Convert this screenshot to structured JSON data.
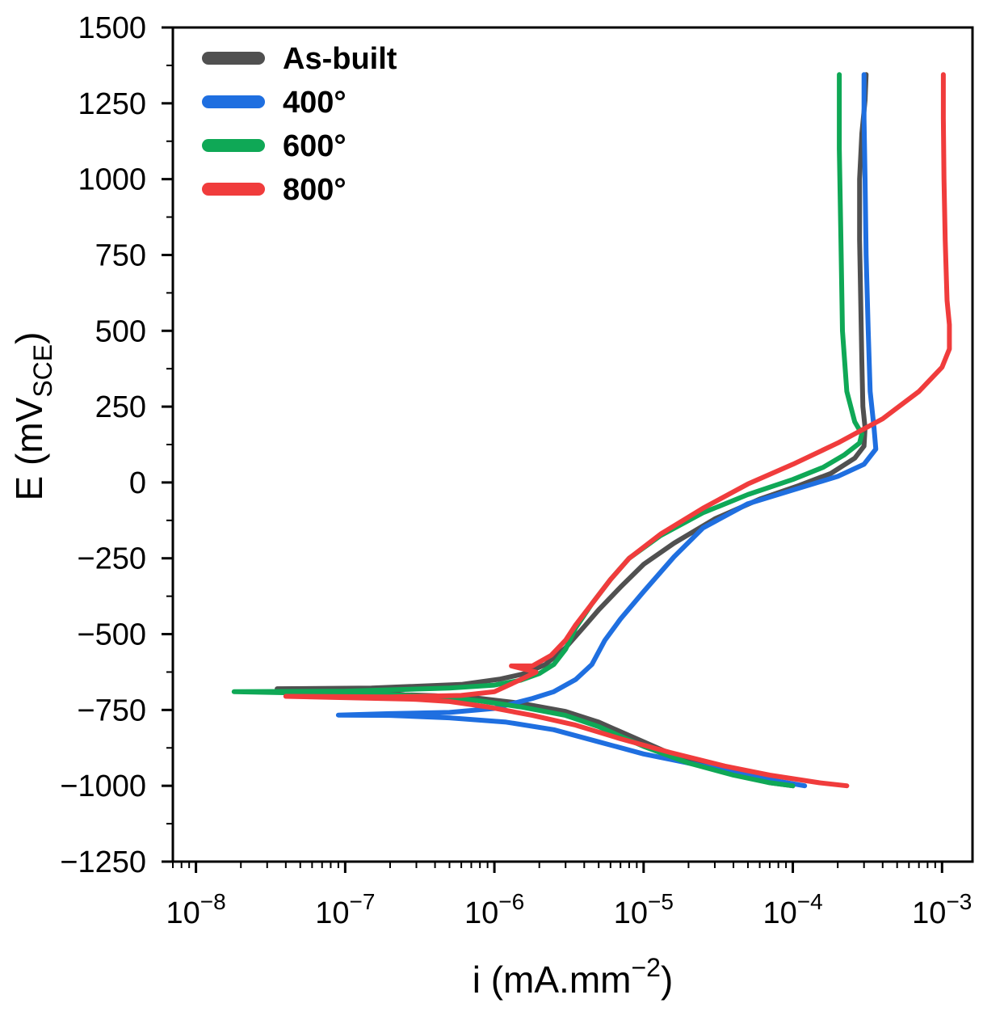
{
  "chart_data": {
    "type": "line",
    "xlabel": {
      "base": "i (mA.mm",
      "sup": "−2",
      "tail": ")"
    },
    "ylabel": {
      "base": "E (mV",
      "sub": "SCE",
      "tail": ")"
    },
    "xscale": "log",
    "xlim": [
      7e-09,
      0.0016
    ],
    "ylim": [
      -1250,
      1500
    ],
    "yticks": [
      {
        "v": 1500,
        "label": "1500"
      },
      {
        "v": 1250,
        "label": "1250"
      },
      {
        "v": 1000,
        "label": "1000"
      },
      {
        "v": 750,
        "label": "750"
      },
      {
        "v": 500,
        "label": "500"
      },
      {
        "v": 250,
        "label": "250"
      },
      {
        "v": 0,
        "label": "0"
      },
      {
        "v": -250,
        "label": "−250"
      },
      {
        "v": -500,
        "label": "−500"
      },
      {
        "v": -750,
        "label": "−750"
      },
      {
        "v": -1000,
        "label": "−1000"
      },
      {
        "v": -1250,
        "label": "−1250"
      }
    ],
    "xticks": [
      {
        "v": 1e-08,
        "base": "10",
        "exp": "−8"
      },
      {
        "v": 1e-07,
        "base": "10",
        "exp": "−7"
      },
      {
        "v": 1e-06,
        "base": "10",
        "exp": "−6"
      },
      {
        "v": 1e-05,
        "base": "10",
        "exp": "−5"
      },
      {
        "v": 0.0001,
        "base": "10",
        "exp": "−4"
      },
      {
        "v": 0.001,
        "base": "10",
        "exp": "−3"
      }
    ],
    "legend_position": "top-left",
    "grid": false,
    "series": [
      {
        "name": "As-built",
        "color": "#505050",
        "points": [
          [
            0.0001,
            -1000
          ],
          [
            7e-05,
            -990
          ],
          [
            4e-05,
            -960
          ],
          [
            2e-05,
            -920
          ],
          [
            1e-05,
            -855
          ],
          [
            5e-06,
            -790
          ],
          [
            3e-06,
            -755
          ],
          [
            1.5e-06,
            -728
          ],
          [
            8e-07,
            -712
          ],
          [
            4e-07,
            -703
          ],
          [
            2.5e-07,
            -700
          ],
          [
            2e-07,
            -695
          ],
          [
            3.5e-08,
            -680
          ],
          [
            1.5e-07,
            -678
          ],
          [
            6e-07,
            -666
          ],
          [
            1.1e-06,
            -648
          ],
          [
            1.6e-06,
            -630
          ],
          [
            2.2e-06,
            -600
          ],
          [
            3e-06,
            -545
          ],
          [
            4e-06,
            -475
          ],
          [
            5e-06,
            -420
          ],
          [
            7e-06,
            -345
          ],
          [
            1e-05,
            -270
          ],
          [
            1.6e-05,
            -200
          ],
          [
            3e-05,
            -120
          ],
          [
            6e-05,
            -55
          ],
          [
            0.00011,
            -10
          ],
          [
            0.00018,
            30
          ],
          [
            0.00026,
            80
          ],
          [
            0.0003,
            120
          ],
          [
            0.000305,
            180
          ],
          [
            0.000295,
            250
          ],
          [
            0.00029,
            400
          ],
          [
            0.000285,
            600
          ],
          [
            0.00028,
            800
          ],
          [
            0.00028,
            1000
          ],
          [
            0.00029,
            1150
          ],
          [
            0.000305,
            1260
          ],
          [
            0.00031,
            1345
          ]
        ]
      },
      {
        "name": "400°",
        "color": "#1f6fe0",
        "points": [
          [
            0.00012,
            -1000
          ],
          [
            8e-05,
            -985
          ],
          [
            4e-05,
            -955
          ],
          [
            2e-05,
            -925
          ],
          [
            1e-05,
            -895
          ],
          [
            5e-06,
            -855
          ],
          [
            2.5e-06,
            -815
          ],
          [
            1.2e-06,
            -790
          ],
          [
            5e-07,
            -776
          ],
          [
            2e-07,
            -768
          ],
          [
            9e-08,
            -767
          ],
          [
            2e-07,
            -762
          ],
          [
            5e-07,
            -758
          ],
          [
            1e-06,
            -745
          ],
          [
            1.3e-06,
            -730
          ],
          [
            1.8e-06,
            -712
          ],
          [
            2.5e-06,
            -690
          ],
          [
            3.5e-06,
            -650
          ],
          [
            4.5e-06,
            -600
          ],
          [
            5.5e-06,
            -520
          ],
          [
            7e-06,
            -450
          ],
          [
            1e-05,
            -360
          ],
          [
            1.6e-05,
            -245
          ],
          [
            2.5e-05,
            -150
          ],
          [
            5e-05,
            -70
          ],
          [
            0.0001,
            -25
          ],
          [
            0.0002,
            20
          ],
          [
            0.0003,
            60
          ],
          [
            0.00036,
            110
          ],
          [
            0.00035,
            180
          ],
          [
            0.00033,
            300
          ],
          [
            0.00032,
            500
          ],
          [
            0.00031,
            750
          ],
          [
            0.000305,
            1000
          ],
          [
            0.0003,
            1200
          ],
          [
            0.0003,
            1345
          ]
        ]
      },
      {
        "name": "600°",
        "color": "#0fa856",
        "points": [
          [
            0.0001,
            -1000
          ],
          [
            7e-05,
            -990
          ],
          [
            4e-05,
            -965
          ],
          [
            2e-05,
            -925
          ],
          [
            1e-05,
            -870
          ],
          [
            5e-06,
            -805
          ],
          [
            3e-06,
            -768
          ],
          [
            1.5e-06,
            -740
          ],
          [
            8e-07,
            -720
          ],
          [
            4e-07,
            -705
          ],
          [
            2e-07,
            -700
          ],
          [
            1.8e-08,
            -690
          ],
          [
            1e-07,
            -688
          ],
          [
            5e-07,
            -678
          ],
          [
            1e-06,
            -668
          ],
          [
            1.5e-06,
            -652
          ],
          [
            2e-06,
            -630
          ],
          [
            2.5e-06,
            -600
          ],
          [
            3e-06,
            -550
          ],
          [
            3.5e-06,
            -480
          ],
          [
            4.5e-06,
            -400
          ],
          [
            6e-06,
            -320
          ],
          [
            8e-06,
            -250
          ],
          [
            1.3e-05,
            -175
          ],
          [
            2.5e-05,
            -100
          ],
          [
            5e-05,
            -40
          ],
          [
            0.0001,
            10
          ],
          [
            0.00016,
            50
          ],
          [
            0.00022,
            90
          ],
          [
            0.00028,
            130
          ],
          [
            0.00029,
            160
          ],
          [
            0.00026,
            200
          ],
          [
            0.00023,
            300
          ],
          [
            0.000215,
            500
          ],
          [
            0.00021,
            800
          ],
          [
            0.000205,
            1100
          ],
          [
            0.000205,
            1345
          ]
        ]
      },
      {
        "name": "800°",
        "color": "#f03c3c",
        "points": [
          [
            0.00023,
            -1000
          ],
          [
            0.00015,
            -990
          ],
          [
            7e-05,
            -965
          ],
          [
            3.5e-05,
            -935
          ],
          [
            1.5e-05,
            -890
          ],
          [
            7e-06,
            -845
          ],
          [
            3.5e-06,
            -800
          ],
          [
            1.8e-06,
            -768
          ],
          [
            9e-07,
            -740
          ],
          [
            5e-07,
            -722
          ],
          [
            3e-07,
            -715
          ],
          [
            4e-08,
            -705
          ],
          [
            2e-07,
            -707
          ],
          [
            6e-07,
            -702
          ],
          [
            1e-06,
            -690
          ],
          [
            1.5e-06,
            -650
          ],
          [
            1.9e-06,
            -625
          ],
          [
            1.3e-06,
            -605
          ],
          [
            1.8e-06,
            -605
          ],
          [
            2.4e-06,
            -570
          ],
          [
            3e-06,
            -520
          ],
          [
            3.5e-06,
            -470
          ],
          [
            4.5e-06,
            -400
          ],
          [
            6e-06,
            -320
          ],
          [
            8e-06,
            -250
          ],
          [
            1.3e-05,
            -170
          ],
          [
            2.5e-05,
            -85
          ],
          [
            5e-05,
            -5
          ],
          [
            0.0001,
            60
          ],
          [
            0.0002,
            130
          ],
          [
            0.0004,
            210
          ],
          [
            0.0007,
            300
          ],
          [
            0.001,
            380
          ],
          [
            0.00112,
            440
          ],
          [
            0.00112,
            520
          ],
          [
            0.00108,
            600
          ],
          [
            0.00105,
            800
          ],
          [
            0.00103,
            1000
          ],
          [
            0.00102,
            1200
          ],
          [
            0.00102,
            1345
          ]
        ]
      }
    ]
  }
}
